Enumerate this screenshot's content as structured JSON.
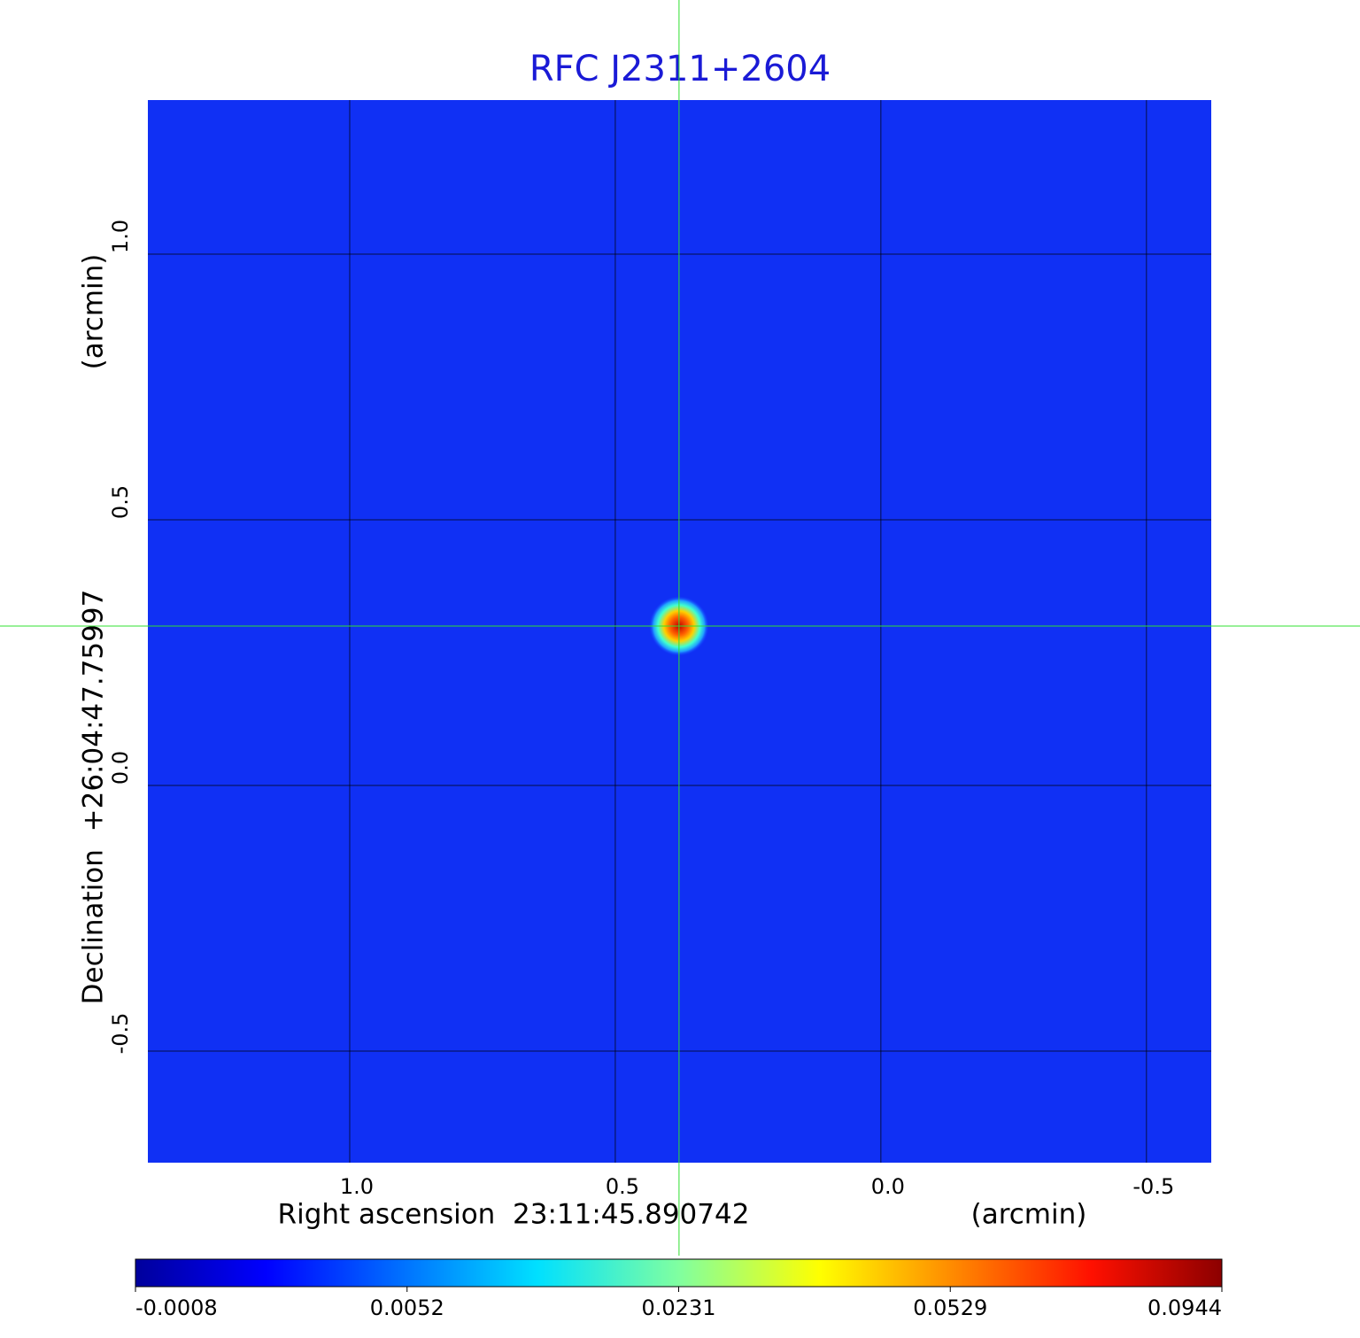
{
  "chart_data": {
    "type": "image",
    "title": "RFC J2311+2604",
    "x_label": "Right ascension  23:11:45.890742",
    "x_unit": "(arcmin)",
    "y_label": "Declination  +26:04:47.75997",
    "y_unit": "(arcmin)",
    "xlim": [
      1.38,
      -0.622
    ],
    "ylim": [
      -0.71,
      1.29
    ],
    "xticks": [
      {
        "value": 1,
        "label": "1.0"
      },
      0.5,
      {
        "value": 0,
        "label": "0.0"
      },
      -0.5
    ],
    "yticks": [
      -0.5,
      {
        "value": 0,
        "label": "0.0"
      },
      0.5,
      {
        "value": 1,
        "label": "1.0"
      }
    ],
    "grid": true,
    "crosshair": {
      "x": 0.38,
      "y": 0.3
    },
    "colorbar_ticks": [
      -0.0008,
      0.0052,
      0.0231,
      0.0529,
      0.0944
    ]
  }
}
